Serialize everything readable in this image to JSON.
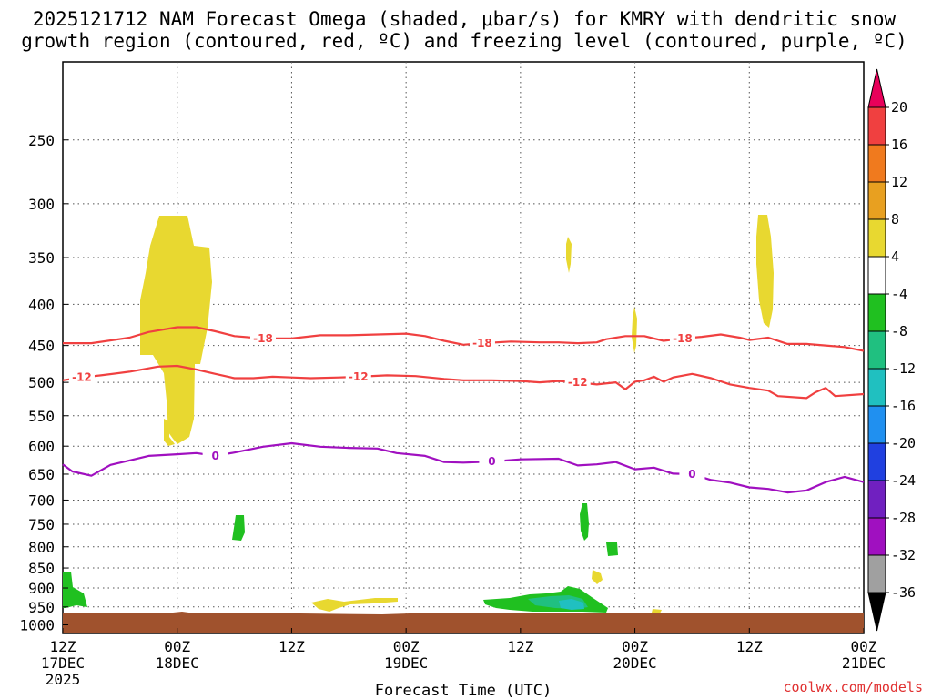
{
  "chart_data": {
    "type": "time-height contour",
    "title_line1": "2025121712 NAM Forecast Omega (shaded, μbar/s) for KMRY with dendritic snow",
    "title_line2": "growth region (contoured, red, ºC) and freezing level (contoured, purple, ºC)",
    "xlabel": "Forecast Time (UTC)",
    "credit": "coolwx.com/models",
    "x_hours_range": [
      0,
      84
    ],
    "y_pressure_range": [
      1025,
      200
    ],
    "x_ticks": [
      {
        "hour": 0,
        "l1": "12Z",
        "l2": "17DEC",
        "l3": "2025"
      },
      {
        "hour": 12,
        "l1": "00Z",
        "l2": "18DEC",
        "l3": ""
      },
      {
        "hour": 24,
        "l1": "12Z",
        "l2": "",
        "l3": ""
      },
      {
        "hour": 36,
        "l1": "00Z",
        "l2": "19DEC",
        "l3": ""
      },
      {
        "hour": 48,
        "l1": "12Z",
        "l2": "",
        "l3": ""
      },
      {
        "hour": 60,
        "l1": "00Z",
        "l2": "20DEC",
        "l3": ""
      },
      {
        "hour": 72,
        "l1": "12Z",
        "l2": "",
        "l3": ""
      },
      {
        "hour": 84,
        "l1": "00Z",
        "l2": "21DEC",
        "l3": ""
      }
    ],
    "y_ticks": [
      250,
      300,
      350,
      400,
      450,
      500,
      550,
      600,
      650,
      700,
      750,
      800,
      850,
      900,
      950,
      1000
    ],
    "colorbar": {
      "labels": [
        "20",
        "16",
        "12",
        "8",
        "4",
        "-4",
        "-8",
        "-12",
        "-16",
        "-20",
        "-24",
        "-28",
        "-32",
        "-36"
      ],
      "colors": [
        "#e8005a",
        "#f04040",
        "#f07a1e",
        "#e8a020",
        "#e8d830",
        "#ffffff",
        "#20c020",
        "#20c080",
        "#20c0c0",
        "#2090f0",
        "#2040e0",
        "#7020c0",
        "#a010c0",
        "#a0a0a0",
        "#000000"
      ]
    },
    "series": [
      {
        "name": "-18 C isotherm",
        "color": "#f04040",
        "label": "-18",
        "points": [
          [
            0,
            447
          ],
          [
            3,
            447
          ],
          [
            7,
            440
          ],
          [
            9,
            433
          ],
          [
            12,
            427
          ],
          [
            14,
            427
          ],
          [
            16,
            432
          ],
          [
            18,
            438
          ],
          [
            21,
            441
          ],
          [
            24,
            441
          ],
          [
            27,
            437
          ],
          [
            30,
            437
          ],
          [
            33,
            436
          ],
          [
            36,
            435
          ],
          [
            38,
            438
          ],
          [
            40,
            444
          ],
          [
            42,
            449
          ],
          [
            44,
            447
          ],
          [
            47,
            445
          ],
          [
            50,
            446
          ],
          [
            52,
            446
          ],
          [
            54,
            447
          ],
          [
            56,
            446
          ],
          [
            57,
            442
          ],
          [
            59,
            438
          ],
          [
            61,
            438
          ],
          [
            63,
            444
          ],
          [
            65,
            441
          ],
          [
            67,
            439
          ],
          [
            69,
            436
          ],
          [
            71,
            440
          ],
          [
            72,
            443
          ],
          [
            74,
            440
          ],
          [
            76,
            448
          ],
          [
            78,
            448
          ],
          [
            80,
            450
          ],
          [
            82,
            452
          ],
          [
            84,
            457
          ]
        ]
      },
      {
        "name": "-12 C isotherm",
        "color": "#f04040",
        "label": "-12",
        "points": [
          [
            0,
            497
          ],
          [
            2,
            493
          ],
          [
            4,
            490
          ],
          [
            7,
            485
          ],
          [
            10,
            478
          ],
          [
            12,
            477
          ],
          [
            14,
            482
          ],
          [
            16,
            488
          ],
          [
            18,
            494
          ],
          [
            20,
            494
          ],
          [
            22,
            492
          ],
          [
            24,
            493
          ],
          [
            26,
            494
          ],
          [
            29,
            493
          ],
          [
            31,
            492
          ],
          [
            34,
            490
          ],
          [
            37,
            491
          ],
          [
            40,
            495
          ],
          [
            42,
            497
          ],
          [
            45,
            497
          ],
          [
            48,
            498
          ],
          [
            50,
            500
          ],
          [
            52,
            498
          ],
          [
            54,
            500
          ],
          [
            56,
            503
          ],
          [
            58,
            500
          ],
          [
            59,
            510
          ],
          [
            60,
            499
          ],
          [
            61,
            497
          ],
          [
            62,
            492
          ],
          [
            63,
            499
          ],
          [
            64,
            493
          ],
          [
            66,
            488
          ],
          [
            68,
            494
          ],
          [
            70,
            503
          ],
          [
            72,
            508
          ],
          [
            74,
            512
          ],
          [
            75,
            520
          ],
          [
            78,
            523
          ],
          [
            79,
            514
          ],
          [
            80,
            508
          ],
          [
            81,
            520
          ],
          [
            84,
            517
          ]
        ]
      },
      {
        "name": "0 C freezing level",
        "color": "#a010c0",
        "label": "0",
        "points": [
          [
            0,
            632
          ],
          [
            1,
            645
          ],
          [
            3,
            653
          ],
          [
            5,
            633
          ],
          [
            7,
            625
          ],
          [
            9,
            617
          ],
          [
            12,
            614
          ],
          [
            14,
            612
          ],
          [
            16,
            617
          ],
          [
            18,
            611
          ],
          [
            21,
            601
          ],
          [
            24,
            595
          ],
          [
            27,
            601
          ],
          [
            30,
            603
          ],
          [
            33,
            604
          ],
          [
            35,
            612
          ],
          [
            38,
            617
          ],
          [
            40,
            628
          ],
          [
            42,
            629
          ],
          [
            45,
            627
          ],
          [
            48,
            623
          ],
          [
            52,
            622
          ],
          [
            54,
            634
          ],
          [
            56,
            632
          ],
          [
            58,
            628
          ],
          [
            60,
            641
          ],
          [
            62,
            638
          ],
          [
            64,
            649
          ],
          [
            66,
            650
          ],
          [
            68,
            661
          ],
          [
            70,
            666
          ],
          [
            72,
            675
          ],
          [
            74,
            678
          ],
          [
            76,
            685
          ],
          [
            78,
            681
          ],
          [
            80,
            665
          ],
          [
            82,
            655
          ],
          [
            84,
            665
          ]
        ]
      }
    ]
  }
}
